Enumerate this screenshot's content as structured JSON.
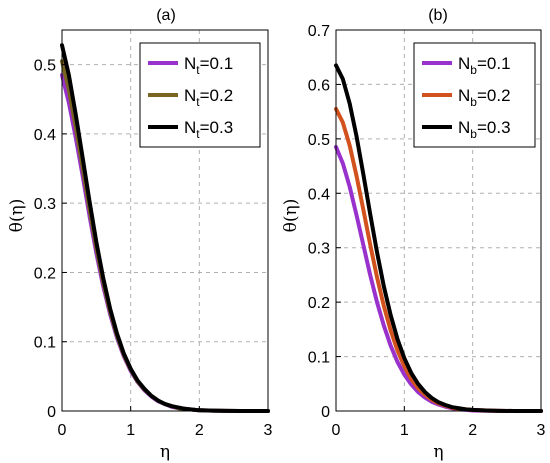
{
  "chart_data": [
    {
      "type": "line",
      "title": "(a)",
      "xlabel": "η",
      "ylabel": "θ(η)",
      "xlim": [
        0,
        3
      ],
      "ylim": [
        0,
        0.55
      ],
      "xticks": [
        "0",
        "1",
        "2",
        "3"
      ],
      "yticks": [
        "0",
        "0.1",
        "0.2",
        "0.3",
        "0.4",
        "0.5"
      ],
      "grid": true,
      "legend_position": "top-right",
      "series": [
        {
          "name": "Nt=0.1",
          "legend": {
            "base": "N",
            "sub": "t",
            "rest": "=0.1"
          },
          "color": "#9932CC",
          "x": [
            0,
            0.1,
            0.2,
            0.3,
            0.4,
            0.5,
            0.6,
            0.7,
            0.8,
            0.9,
            1.0,
            1.1,
            1.2,
            1.3,
            1.4,
            1.5,
            1.6,
            1.7,
            1.8,
            1.9,
            2.0,
            2.2,
            2.4,
            2.6,
            2.8,
            3.0
          ],
          "y": [
            0.485,
            0.445,
            0.395,
            0.34,
            0.282,
            0.228,
            0.18,
            0.14,
            0.106,
            0.079,
            0.058,
            0.042,
            0.03,
            0.021,
            0.014,
            0.01,
            0.006,
            0.004,
            0.003,
            0.002,
            0.001,
            0.0005,
            0.0002,
            0,
            0,
            0
          ]
        },
        {
          "name": "Nt=0.2",
          "legend": {
            "base": "N",
            "sub": "t",
            "rest": "=0.2"
          },
          "color": "#7A6520",
          "x": [
            0,
            0.1,
            0.2,
            0.3,
            0.4,
            0.5,
            0.6,
            0.7,
            0.8,
            0.9,
            1.0,
            1.1,
            1.2,
            1.3,
            1.4,
            1.5,
            1.6,
            1.7,
            1.8,
            1.9,
            2.0,
            2.2,
            2.4,
            2.6,
            2.8,
            3.0
          ],
          "y": [
            0.505,
            0.464,
            0.41,
            0.352,
            0.292,
            0.236,
            0.186,
            0.144,
            0.109,
            0.081,
            0.06,
            0.043,
            0.031,
            0.022,
            0.015,
            0.01,
            0.007,
            0.004,
            0.003,
            0.002,
            0.001,
            0.0005,
            0.0002,
            0,
            0,
            0
          ]
        },
        {
          "name": "Nt=0.3",
          "legend": {
            "base": "N",
            "sub": "t",
            "rest": "=0.3"
          },
          "color": "#000000",
          "x": [
            0,
            0.1,
            0.2,
            0.3,
            0.4,
            0.5,
            0.6,
            0.7,
            0.8,
            0.9,
            1.0,
            1.1,
            1.2,
            1.3,
            1.4,
            1.5,
            1.6,
            1.7,
            1.8,
            1.9,
            2.0,
            2.2,
            2.4,
            2.6,
            2.8,
            3.0
          ],
          "y": [
            0.528,
            0.485,
            0.428,
            0.366,
            0.303,
            0.244,
            0.192,
            0.148,
            0.112,
            0.083,
            0.061,
            0.044,
            0.032,
            0.022,
            0.015,
            0.01,
            0.007,
            0.005,
            0.003,
            0.002,
            0.001,
            0.0005,
            0.0002,
            0,
            0,
            0
          ]
        }
      ]
    },
    {
      "type": "line",
      "title": "(b)",
      "xlabel": "η",
      "ylabel": "θ(η)",
      "xlim": [
        0,
        3
      ],
      "ylim": [
        0,
        0.7
      ],
      "xticks": [
        "0",
        "1",
        "2",
        "3"
      ],
      "yticks": [
        "0",
        "0.1",
        "0.2",
        "0.3",
        "0.4",
        "0.5",
        "0.6",
        "0.7"
      ],
      "grid": true,
      "legend_position": "top-right",
      "series": [
        {
          "name": "Nb=0.1",
          "legend": {
            "base": "N",
            "sub": "b",
            "rest": "=0.1"
          },
          "color": "#9932CC",
          "x": [
            0,
            0.1,
            0.2,
            0.3,
            0.4,
            0.5,
            0.6,
            0.7,
            0.8,
            0.9,
            1.0,
            1.1,
            1.2,
            1.3,
            1.4,
            1.5,
            1.6,
            1.7,
            1.8,
            1.9,
            2.0,
            2.2,
            2.4,
            2.6,
            2.8,
            3.0
          ],
          "y": [
            0.485,
            0.455,
            0.412,
            0.36,
            0.305,
            0.25,
            0.2,
            0.157,
            0.12,
            0.09,
            0.067,
            0.049,
            0.035,
            0.025,
            0.017,
            0.012,
            0.008,
            0.005,
            0.003,
            0.002,
            0.001,
            0.0005,
            0.0002,
            0,
            0,
            0
          ]
        },
        {
          "name": "Nb=0.2",
          "legend": {
            "base": "N",
            "sub": "b",
            "rest": "=0.2"
          },
          "color": "#D2521E",
          "x": [
            0,
            0.1,
            0.2,
            0.3,
            0.4,
            0.5,
            0.6,
            0.7,
            0.8,
            0.9,
            1.0,
            1.1,
            1.2,
            1.3,
            1.4,
            1.5,
            1.6,
            1.7,
            1.8,
            1.9,
            2.0,
            2.2,
            2.4,
            2.6,
            2.8,
            3.0
          ],
          "y": [
            0.555,
            0.53,
            0.488,
            0.432,
            0.37,
            0.306,
            0.246,
            0.193,
            0.148,
            0.111,
            0.082,
            0.059,
            0.042,
            0.03,
            0.021,
            0.014,
            0.01,
            0.006,
            0.004,
            0.003,
            0.002,
            0.001,
            0.0003,
            0,
            0,
            0
          ]
        },
        {
          "name": "Nb=0.3",
          "legend": {
            "base": "N",
            "sub": "b",
            "rest": "=0.3"
          },
          "color": "#000000",
          "x": [
            0,
            0.1,
            0.2,
            0.3,
            0.4,
            0.5,
            0.6,
            0.7,
            0.8,
            0.9,
            1.0,
            1.1,
            1.2,
            1.3,
            1.4,
            1.5,
            1.6,
            1.7,
            1.8,
            1.9,
            2.0,
            2.2,
            2.4,
            2.6,
            2.8,
            3.0
          ],
          "y": [
            0.635,
            0.61,
            0.565,
            0.505,
            0.435,
            0.362,
            0.292,
            0.229,
            0.176,
            0.132,
            0.097,
            0.07,
            0.05,
            0.035,
            0.024,
            0.016,
            0.011,
            0.007,
            0.005,
            0.003,
            0.002,
            0.001,
            0.0003,
            0,
            0,
            0
          ]
        }
      ]
    }
  ]
}
